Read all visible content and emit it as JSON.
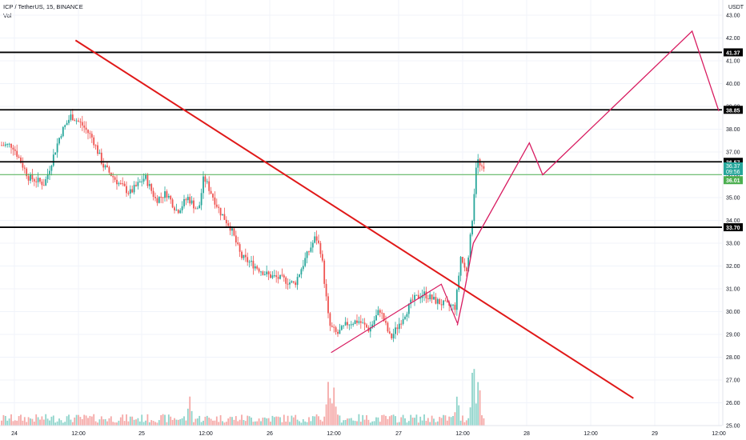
{
  "header": {
    "title": "ICP / TetherUS, 15, BINANCE",
    "indicator": "Vol"
  },
  "colors": {
    "up": "#26a69a",
    "down": "#ef5350",
    "vol_up": "#8fd4cb",
    "vol_down": "#f5a9a7",
    "trendline": "#e01919",
    "projection": "#d81b60",
    "current_level": "#4caf50",
    "level_line": "#000000",
    "grid": "#f0f3fa"
  },
  "chart_data": {
    "type": "candlestick",
    "symbol": "ICP / TetherUS",
    "interval": "15",
    "exchange": "BINANCE",
    "y_unit": "USDT",
    "ylim": [
      25.0,
      43.3
    ],
    "y_ticks": [
      "43.00",
      "42.00",
      "41.00",
      "40.00",
      "39.00",
      "38.00",
      "37.00",
      "36.00",
      "35.00",
      "34.00",
      "33.00",
      "32.00",
      "31.00",
      "30.00",
      "29.00",
      "28.00",
      "27.00",
      "26.00",
      "25.00"
    ],
    "x_tick_labels": [
      "24",
      "12:00",
      "25",
      "12:00",
      "26",
      "12:00",
      "27",
      "12:00",
      "28",
      "12:00",
      "29",
      "12:00"
    ],
    "price_path": [
      {
        "t": "24 00:00",
        "p": 37.3
      },
      {
        "t": "24 03:00",
        "p": 35.9
      },
      {
        "t": "24 06:00",
        "p": 35.6
      },
      {
        "t": "24 09:00",
        "p": 37.8
      },
      {
        "t": "24 11:00",
        "p": 38.6
      },
      {
        "t": "24 13:00",
        "p": 38.2
      },
      {
        "t": "24 15:00",
        "p": 37.6
      },
      {
        "t": "24 17:00",
        "p": 36.4
      },
      {
        "t": "24 20:00",
        "p": 35.6
      },
      {
        "t": "24 22:00",
        "p": 35.2
      },
      {
        "t": "25 01:00",
        "p": 35.9
      },
      {
        "t": "25 03:00",
        "p": 34.9
      },
      {
        "t": "25 05:00",
        "p": 35.2
      },
      {
        "t": "25 07:00",
        "p": 34.4
      },
      {
        "t": "25 09:00",
        "p": 35.0
      },
      {
        "t": "25 11:00",
        "p": 34.4
      },
      {
        "t": "25 12:00",
        "p": 35.9
      },
      {
        "t": "25 13:00",
        "p": 35.4
      },
      {
        "t": "25 15:00",
        "p": 34.4
      },
      {
        "t": "25 17:00",
        "p": 33.7
      },
      {
        "t": "25 19:00",
        "p": 32.4
      },
      {
        "t": "25 21:00",
        "p": 32.1
      },
      {
        "t": "26 00:00",
        "p": 31.6
      },
      {
        "t": "26 03:00",
        "p": 31.4
      },
      {
        "t": "26 05:00",
        "p": 31.2
      },
      {
        "t": "26 07:00",
        "p": 32.3
      },
      {
        "t": "26 09:00",
        "p": 33.3
      },
      {
        "t": "26 10:00",
        "p": 32.6
      },
      {
        "t": "26 11:30",
        "p": 29.4
      },
      {
        "t": "26 13:00",
        "p": 29.0
      },
      {
        "t": "26 15:00",
        "p": 29.5
      },
      {
        "t": "26 17:00",
        "p": 29.6
      },
      {
        "t": "26 19:00",
        "p": 29.2
      },
      {
        "t": "26 21:00",
        "p": 30.1
      },
      {
        "t": "26 23:00",
        "p": 28.8
      },
      {
        "t": "27 01:00",
        "p": 29.7
      },
      {
        "t": "27 03:00",
        "p": 30.5
      },
      {
        "t": "27 05:00",
        "p": 30.8
      },
      {
        "t": "27 07:00",
        "p": 30.5
      },
      {
        "t": "27 09:00",
        "p": 30.3
      },
      {
        "t": "27 11:00",
        "p": 30.2
      },
      {
        "t": "27 12:00",
        "p": 32.4
      },
      {
        "t": "27 13:00",
        "p": 31.7
      },
      {
        "t": "27 14:00",
        "p": 33.6
      },
      {
        "t": "27 15:00",
        "p": 36.8
      },
      {
        "t": "27 15:30",
        "p": 36.4
      },
      {
        "t": "27 16:00",
        "p": 36.2
      }
    ],
    "volume_spikes": [
      {
        "t": "25 09:00",
        "v": 0.42
      },
      {
        "t": "26 11:00",
        "v": 0.65
      },
      {
        "t": "26 12:00",
        "v": 0.55
      },
      {
        "t": "27 11:00",
        "v": 0.45
      },
      {
        "t": "27 14:00",
        "v": 1.0
      },
      {
        "t": "27 15:00",
        "v": 0.72
      }
    ],
    "horizontal_levels": [
      {
        "price": 41.37,
        "label": "41.37"
      },
      {
        "price": 38.85,
        "label": "38.85"
      },
      {
        "price": 36.57,
        "label": "36.57"
      },
      {
        "price": 33.7,
        "label": "33.70"
      }
    ],
    "current_price": {
      "price": 36.37,
      "label": "36.37",
      "countdown": "09:56"
    },
    "green_level": {
      "price": 36.01,
      "label": "36.01"
    },
    "trendline": {
      "start": {
        "t": "23 20:00",
        "p": 41.9
      },
      "end": {
        "t": "28 20:00",
        "p": 26.2
      }
    },
    "triangle_pattern": [
      {
        "t": "26 11:30",
        "p": 28.2
      },
      {
        "t": "27 08:00",
        "p": 31.2
      },
      {
        "t": "27 11:00",
        "p": 29.5
      }
    ],
    "projection_path": [
      {
        "t": "27 11:00",
        "p": 29.4
      },
      {
        "t": "27 12:15",
        "p": 30.8
      },
      {
        "t": "27 14:00",
        "p": 33.0
      },
      {
        "t": "28 00:30",
        "p": 37.4
      },
      {
        "t": "28 03:00",
        "p": 36.0
      },
      {
        "t": "29 07:00",
        "p": 42.3
      },
      {
        "t": "29 12:00",
        "p": 38.8
      }
    ]
  }
}
